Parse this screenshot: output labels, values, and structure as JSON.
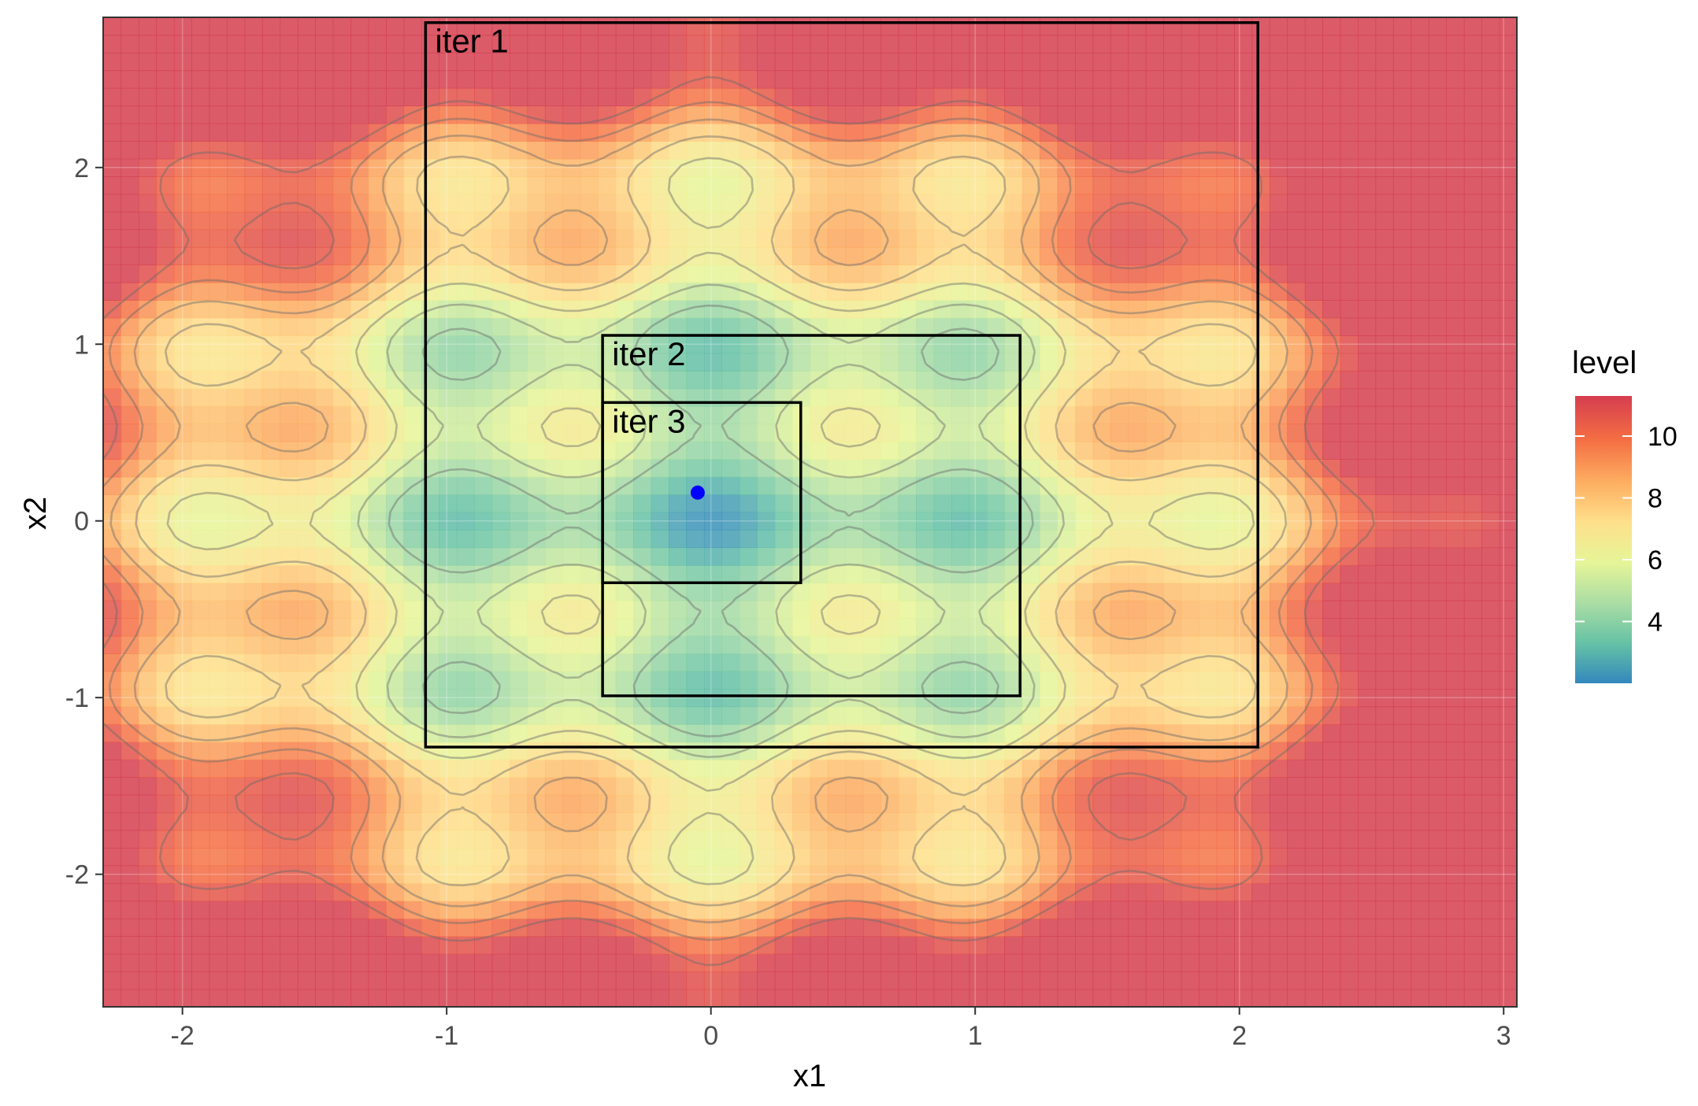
{
  "chart_data": {
    "type": "heatmap",
    "subtype": "contour-filled with overlaid search regions",
    "title": "",
    "xlabel": "x1",
    "ylabel": "x2",
    "xlim": [
      -2.3,
      3.05
    ],
    "ylim": [
      -2.75,
      2.85
    ],
    "x_ticks": [
      {
        "value": -2,
        "label": "-2"
      },
      {
        "value": -1,
        "label": "-1"
      },
      {
        "value": 0,
        "label": "0"
      },
      {
        "value": 1,
        "label": "1"
      },
      {
        "value": 2,
        "label": "2"
      },
      {
        "value": 3,
        "label": "3"
      }
    ],
    "y_ticks": [
      {
        "value": -2,
        "label": "-2"
      },
      {
        "value": -1,
        "label": "-1"
      },
      {
        "value": 0,
        "label": "0"
      },
      {
        "value": 1,
        "label": "1"
      },
      {
        "value": 2,
        "label": "2"
      }
    ],
    "grid": true,
    "legend": {
      "title": "level",
      "position": "right",
      "range": [
        2,
        11.3
      ],
      "ticks": [
        {
          "value": 4,
          "label": "4"
        },
        {
          "value": 6,
          "label": "6"
        },
        {
          "value": 8,
          "label": "8"
        },
        {
          "value": 10,
          "label": "10"
        }
      ],
      "palette": [
        "#3288bd",
        "#66c2a5",
        "#abdda4",
        "#e6f598",
        "#fee08b",
        "#fdae61",
        "#f46d43",
        "#d53e4f"
      ]
    },
    "function_hint": "Rastrigin-like surface, minimum near the origin",
    "iterations": [
      {
        "label": "iter 1",
        "x": [
          -1.08,
          2.07
        ],
        "y": [
          -1.28,
          2.82
        ]
      },
      {
        "label": "iter 2",
        "x": [
          -0.41,
          1.17
        ],
        "y": [
          -0.99,
          1.05
        ]
      },
      {
        "label": "iter 3",
        "x": [
          -0.41,
          0.34
        ],
        "y": [
          -0.35,
          0.67
        ]
      }
    ],
    "optimum": {
      "x": -0.05,
      "y": 0.16,
      "color": "#0000ff"
    }
  }
}
